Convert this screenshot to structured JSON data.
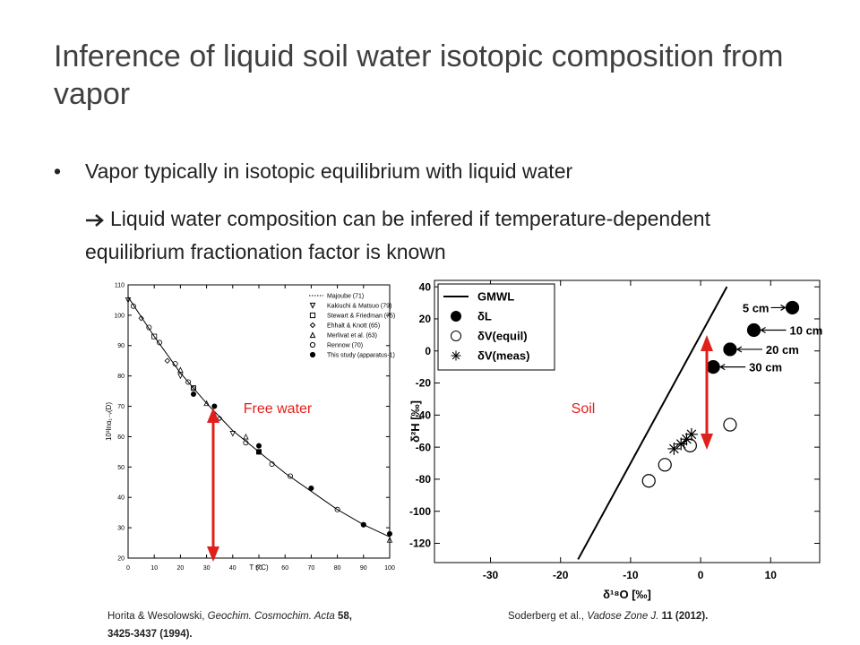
{
  "title": "Inference of liquid soil water isotopic composition from vapor",
  "bullet": "Vapor typically in isotopic equilibrium with liquid water",
  "sub_bullet": "Liquid water composition can be infered if temperature-dependent equilibrium fractionation factor is known",
  "citations": [
    {
      "authors": "Horita & Wesolowski,",
      "journal": "Geochim. Cosmochim. Acta",
      "volume": "58,",
      "pages": "3425-3437 (1994)."
    },
    {
      "authors": "Soderberg et al.,",
      "journal": "Vadose Zone J.",
      "volume": "11 (2012)."
    }
  ],
  "chart_data": [
    {
      "type": "scatter",
      "xlabel": "T (°C)",
      "ylabel": "10³lnα₁₋ᵥ(D)",
      "xlim": [
        0,
        100
      ],
      "xticks": [
        0,
        10,
        20,
        30,
        40,
        50,
        60,
        70,
        80,
        90,
        100
      ],
      "ylim": [
        20,
        110
      ],
      "yticks": [
        20,
        30,
        40,
        50,
        60,
        70,
        80,
        90,
        100,
        110
      ],
      "legend": "upper right",
      "annotation": "Free water",
      "series": [
        {
          "name": "Majoube (71)",
          "marker": "line",
          "color": "#000000",
          "x": [
            0,
            10,
            20,
            30,
            40,
            50,
            60,
            70,
            80,
            90,
            100
          ],
          "values": [
            106,
            93,
            81,
            71,
            62,
            55,
            48,
            42,
            36,
            31,
            27
          ]
        },
        {
          "name": "Kakiuchi & Matsuo (79)",
          "marker": "triangle-down",
          "color": "#000000",
          "x": [
            0,
            20,
            40
          ],
          "values": [
            105,
            80,
            61
          ]
        },
        {
          "name": "Stewart & Friedman (75)",
          "marker": "square",
          "color": "#000000",
          "x": [
            10,
            25,
            50
          ],
          "values": [
            93,
            76,
            55
          ]
        },
        {
          "name": "Ehhalt & Knott (65)",
          "marker": "diamond",
          "color": "#000000",
          "x": [
            5,
            15,
            25,
            35
          ],
          "values": [
            99,
            85,
            76,
            66
          ]
        },
        {
          "name": "Merlivat et al. (63)",
          "marker": "triangle",
          "color": "#000000",
          "x": [
            20,
            30,
            45,
            100
          ],
          "values": [
            82,
            71,
            60,
            26
          ]
        },
        {
          "name": "Rennow (70)",
          "marker": "circle",
          "color": "#000000",
          "x": [
            2,
            8,
            12,
            18,
            23,
            45,
            55,
            62,
            80,
            90
          ],
          "values": [
            103,
            96,
            91,
            84,
            78,
            58,
            51,
            47,
            36,
            31
          ]
        },
        {
          "name": "This study (apparatus-1)",
          "marker": "circle-filled",
          "color": "#000000",
          "x": [
            25,
            33,
            50,
            50,
            70,
            90,
            100
          ],
          "values": [
            74,
            70,
            57,
            55,
            43,
            31,
            28
          ]
        }
      ]
    },
    {
      "type": "scatter",
      "xlabel": "δ¹⁸O [‰]",
      "ylabel": "δ²H [‰]",
      "xlim": [
        -38,
        17
      ],
      "xticks": [
        -30,
        -20,
        -10,
        0,
        10
      ],
      "ylim": [
        -132,
        44
      ],
      "yticks": [
        -120,
        -100,
        -80,
        -60,
        -40,
        -20,
        0,
        20,
        40
      ],
      "legend": "upper left",
      "annotation": "Soil",
      "series": [
        {
          "name": "GMWL",
          "marker": "line",
          "color": "#000000",
          "x": [
            -17.5,
            3.75
          ],
          "values": [
            -130,
            40
          ]
        },
        {
          "name": "δL",
          "marker": "circle-filled",
          "color": "#000000",
          "x": [
            13.1,
            7.6,
            4.2,
            1.8
          ],
          "values": [
            27,
            13,
            1,
            -10
          ],
          "point_labels": [
            "5 cm",
            "10 cm",
            "20 cm",
            "30 cm"
          ]
        },
        {
          "name": "δV(equil)",
          "marker": "circle",
          "color": "#000000",
          "x": [
            -7.4,
            -5.1,
            -1.5,
            4.2
          ],
          "values": [
            -81,
            -71,
            -59,
            -46
          ]
        },
        {
          "name": "δV(meas)",
          "marker": "star",
          "color": "#000000",
          "x": [
            -3.8,
            -2.8,
            -2,
            -1.3
          ],
          "values": [
            -61,
            -58,
            -55,
            -52
          ]
        }
      ]
    }
  ]
}
